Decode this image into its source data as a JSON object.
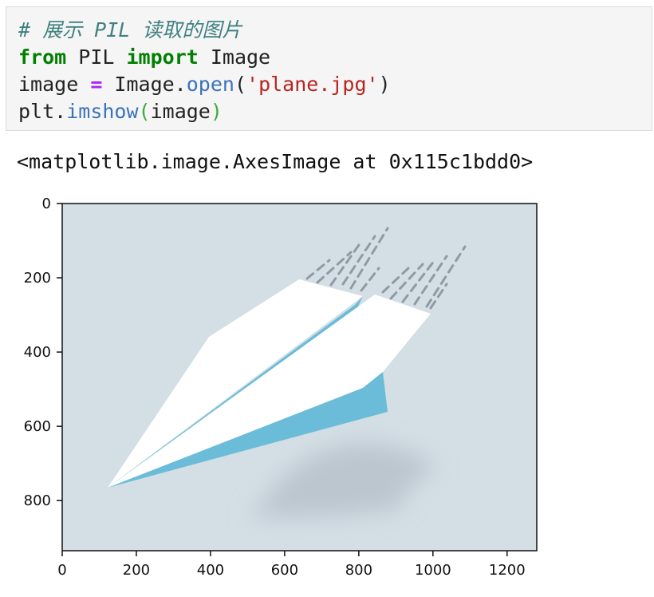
{
  "code_cell": {
    "line1": {
      "comment": "# 展示 PIL 读取的图片"
    },
    "line2": {
      "kw_from": "from",
      "module": " PIL ",
      "kw_import": "import",
      "name": " Image"
    },
    "line3": {
      "var": "image ",
      "op": "=",
      "obj": " Image.",
      "method": "open",
      "paren_open": "(",
      "arg": "'plane.jpg'",
      "paren_close": ")"
    },
    "line4": {
      "obj": "plt.",
      "method": "imshow",
      "paren_open": "(",
      "arg": "image",
      "paren_close": ")"
    }
  },
  "output": {
    "text": "<matplotlib.image.AxesImage at 0x115c1bdd0>"
  },
  "colors": {
    "image_background": "#d3dee5",
    "plane_fold": "#6bbcd8",
    "plane_paper": "#ffffff",
    "shadow": "#bcc6cf",
    "speed_lines": "#909aa4"
  },
  "chart_data": {
    "type": "image",
    "image_description_icon": "paper-plane-image",
    "x_ticks": [
      0,
      200,
      400,
      600,
      800,
      1000,
      1200
    ],
    "y_ticks": [
      0,
      200,
      400,
      600,
      800
    ],
    "xlim": [
      0,
      1280
    ],
    "ylim": [
      935,
      0
    ]
  }
}
